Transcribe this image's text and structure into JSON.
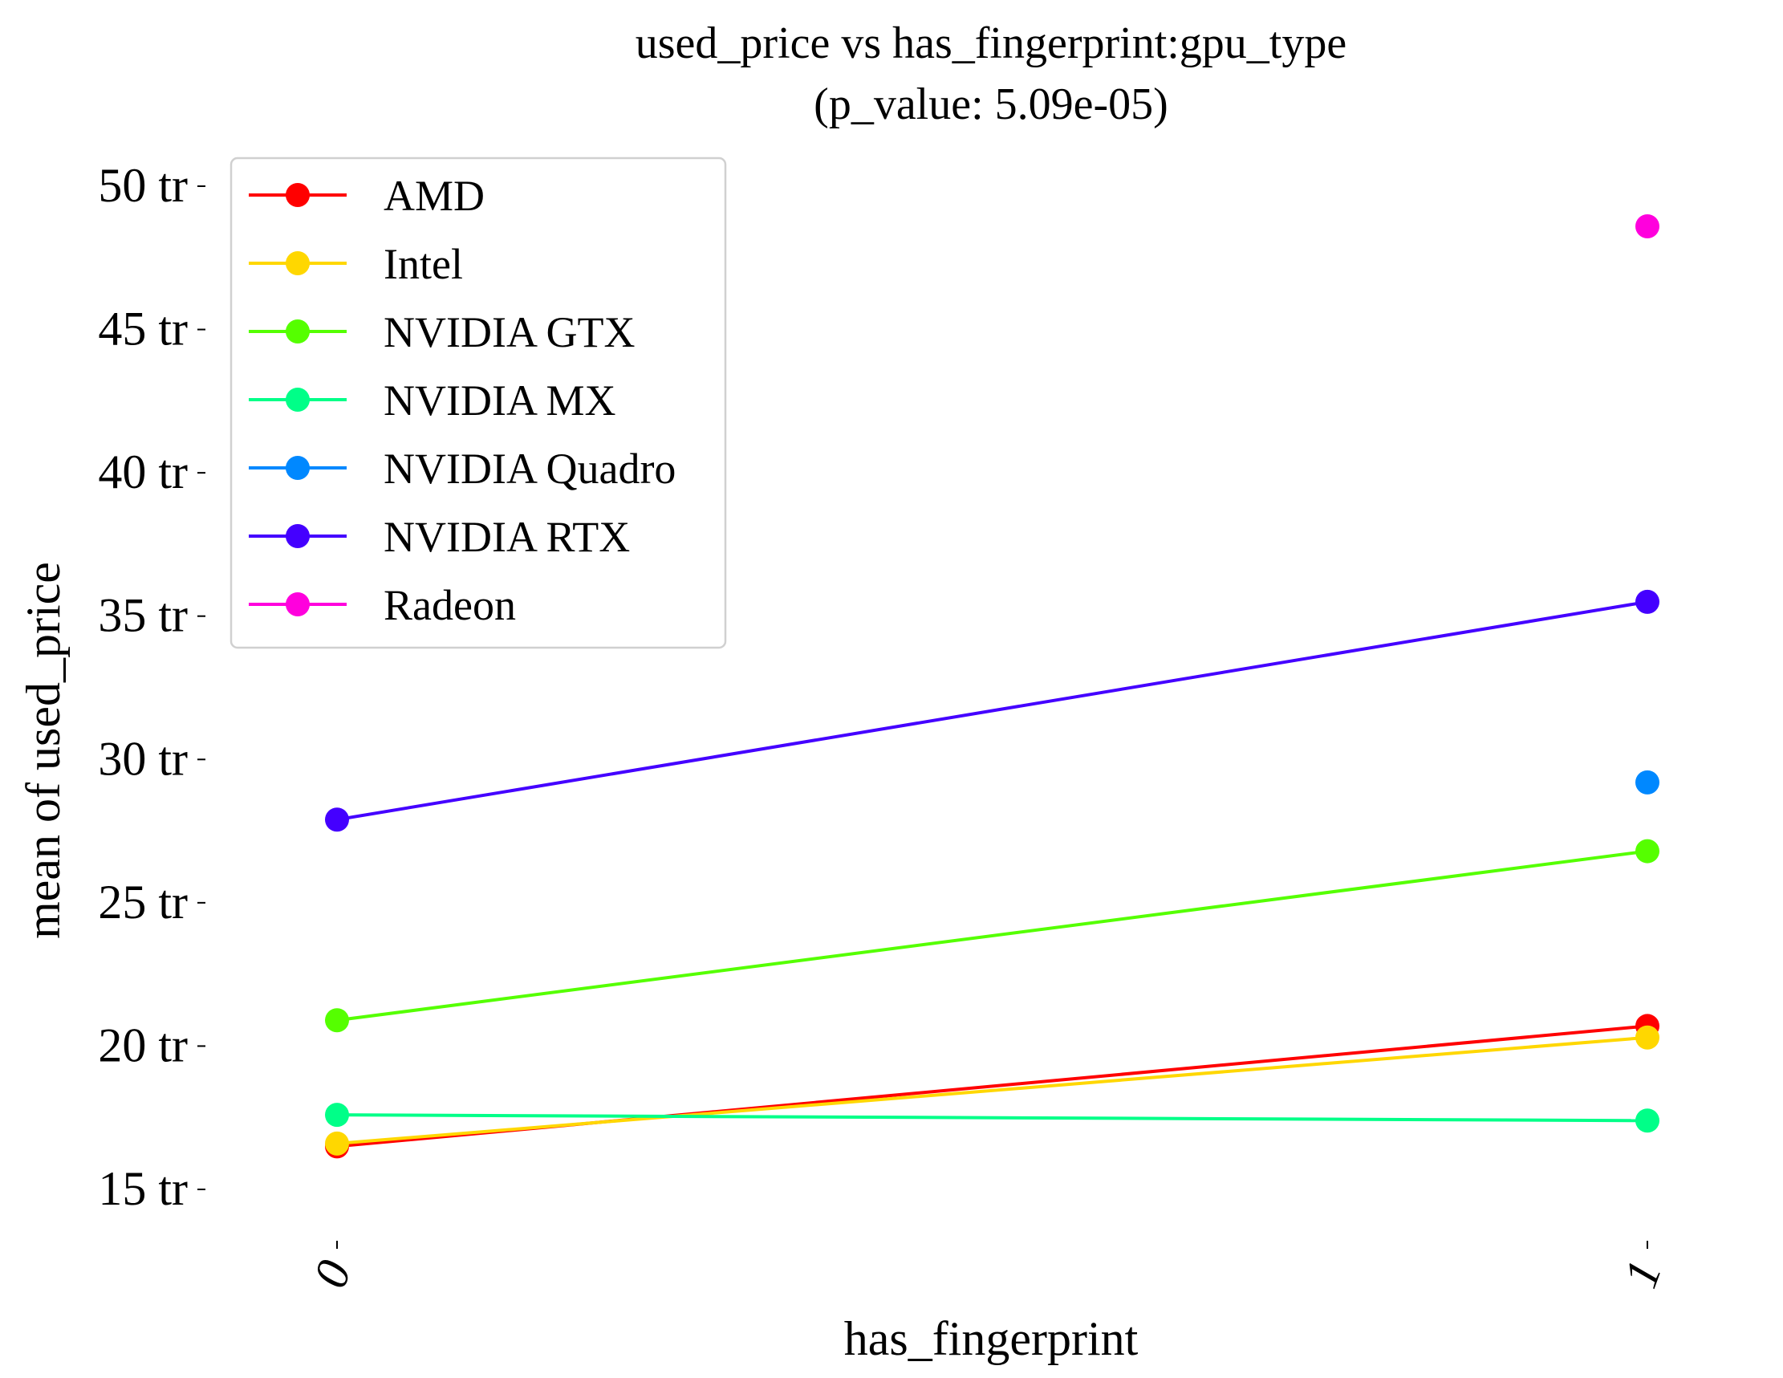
{
  "chart_data": {
    "type": "line",
    "title": "used_price vs has_fingerprint:gpu_type",
    "subtitle": "(p_value: 5.09e-05)",
    "xlabel": "has_fingerprint",
    "ylabel": "mean of used_price",
    "categories": [
      "0",
      "1"
    ],
    "ylim": [
      13.8,
      51.5
    ],
    "y_ticks": [
      {
        "value": 15,
        "label": "15 tr"
      },
      {
        "value": 20,
        "label": "20 tr"
      },
      {
        "value": 25,
        "label": "25 tr"
      },
      {
        "value": 30,
        "label": "30 tr"
      },
      {
        "value": 35,
        "label": "35 tr"
      },
      {
        "value": 40,
        "label": "40 tr"
      },
      {
        "value": 45,
        "label": "45 tr"
      },
      {
        "value": 50,
        "label": "50 tr"
      }
    ],
    "y_unit": "tr",
    "grid": false,
    "legend_position": "top-left",
    "series": [
      {
        "name": "AMD",
        "color": "#ff0000",
        "values": [
          16.5,
          20.7
        ]
      },
      {
        "name": "Intel",
        "color": "#ffd700",
        "values": [
          16.6,
          20.3
        ]
      },
      {
        "name": "NVIDIA GTX",
        "color": "#55ff00",
        "values": [
          20.9,
          26.8
        ]
      },
      {
        "name": "NVIDIA MX",
        "color": "#00ff88",
        "values": [
          17.6,
          17.4
        ]
      },
      {
        "name": "NVIDIA Quadro",
        "color": "#0088ff",
        "values": [
          null,
          29.2
        ]
      },
      {
        "name": "NVIDIA RTX",
        "color": "#4400ff",
        "values": [
          27.9,
          35.5
        ]
      },
      {
        "name": "Radeon",
        "color": "#ff00dd",
        "values": [
          null,
          48.6
        ]
      }
    ]
  }
}
